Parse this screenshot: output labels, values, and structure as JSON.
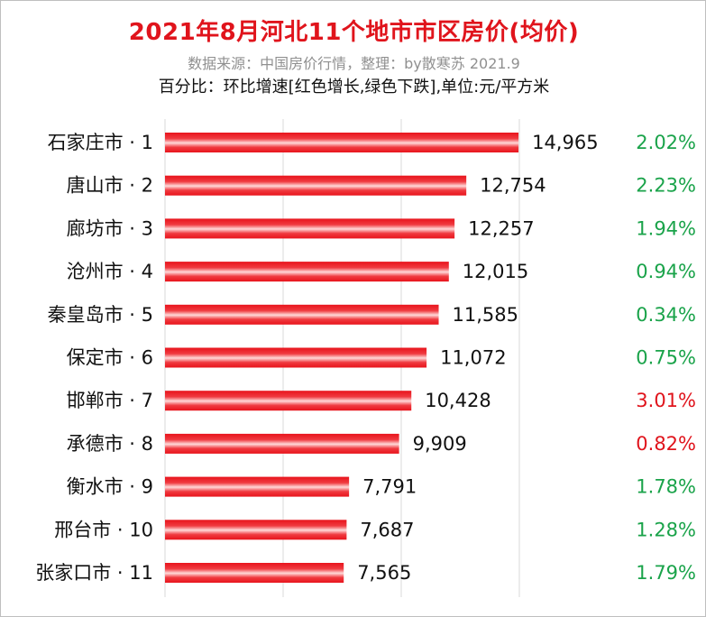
{
  "chart_data": {
    "type": "bar",
    "orientation": "horizontal",
    "title": "2021年8月河北11个地市市区房价(均价)",
    "subtitle": "数据来源：中国房价行情，整理：by散寒苏 2021.9",
    "note": "百分比：环比增速[红色增长,绿色下跌],单位:元/平方米",
    "categories": [
      "石家庄市 · 1",
      "唐山市 · 2",
      "廊坊市 · 3",
      "沧州市 · 4",
      "秦皇岛市 · 5",
      "保定市 · 6",
      "邯郸市 · 7",
      "承德市 · 8",
      "衡水市 · 9",
      "邢台市 · 10",
      "张家口市 · 11"
    ],
    "values": [
      14965,
      12754,
      12257,
      12015,
      11585,
      11072,
      10428,
      9909,
      7791,
      7687,
      7565
    ],
    "value_labels": [
      "14,965",
      "12,754",
      "12,257",
      "12,015",
      "11,585",
      "11,072",
      "10,428",
      "9,909",
      "7,791",
      "7,687",
      "7,565"
    ],
    "pct_changes": [
      "2.02%",
      "2.23%",
      "1.94%",
      "0.94%",
      "0.34%",
      "0.75%",
      "3.01%",
      "0.82%",
      "1.78%",
      "1.28%",
      "1.79%"
    ],
    "pct_direction": [
      "down",
      "down",
      "down",
      "down",
      "down",
      "down",
      "up",
      "up",
      "down",
      "down",
      "down"
    ],
    "xlim": [
      0,
      15000
    ],
    "grid": "vertical",
    "colors": {
      "bar": "#e8141c",
      "bar_highlight": "#ffd9d9",
      "title": "#e0141c",
      "subtitle": "#909090",
      "pct_up": "#e0141c",
      "pct_down": "#1aa34a",
      "grid": "#d9d9d9"
    }
  }
}
